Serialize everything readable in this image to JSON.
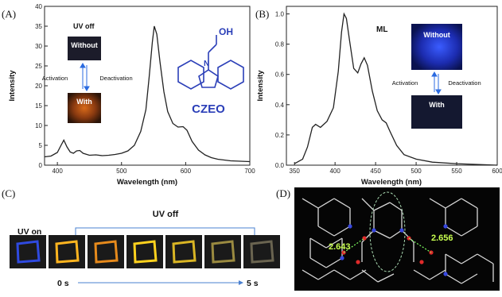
{
  "panels": {
    "A": {
      "label": "(A)"
    },
    "B": {
      "label": "(B)"
    },
    "C": {
      "label": "(C)"
    },
    "D": {
      "label": "(D)"
    }
  },
  "panelA": {
    "inset_title": "UV off",
    "without": "Without",
    "with": "With",
    "activation": "Activation",
    "deactivation": "Deactivation",
    "molecule_oh": "OH",
    "molecule_n": "N",
    "molecule_name": "CZEO",
    "molecule_color": "#2b3fb8"
  },
  "panelB": {
    "ml_label": "ML",
    "without": "Without",
    "with": "With",
    "activation": "Activation",
    "deactivation": "Deactivation"
  },
  "panelC": {
    "uv_on": "UV on",
    "uv_off": "UV off",
    "t_start": "0 s",
    "t_end": "5 s",
    "frame_colors": [
      "#2f4ae0",
      "#ffb520",
      "#e68a1c",
      "#ffd21e",
      "#d9b524",
      "#9a8a40",
      "#6a6450"
    ]
  },
  "panelD": {
    "d1": "2.643",
    "d2": "2.656"
  },
  "chart_data": [
    {
      "type": "line",
      "panel": "A",
      "xlabel": "Wavelength (nm)",
      "ylabel": "Intensity",
      "xlim": [
        380,
        700
      ],
      "ylim": [
        0,
        40
      ],
      "xticks": [
        400,
        500,
        600,
        700
      ],
      "yticks": [
        0,
        5,
        10,
        15,
        20,
        25,
        30,
        35,
        40
      ],
      "series": [
        {
          "points": [
            [
              380,
              2.1
            ],
            [
              390,
              2.3
            ],
            [
              400,
              3.2
            ],
            [
              405,
              4.8
            ],
            [
              410,
              6.3
            ],
            [
              415,
              4.6
            ],
            [
              420,
              3.3
            ],
            [
              425,
              3.0
            ],
            [
              430,
              3.6
            ],
            [
              435,
              3.7
            ],
            [
              440,
              3.0
            ],
            [
              450,
              2.5
            ],
            [
              460,
              2.6
            ],
            [
              470,
              2.4
            ],
            [
              480,
              2.5
            ],
            [
              490,
              2.7
            ],
            [
              500,
              3.0
            ],
            [
              510,
              3.6
            ],
            [
              520,
              5.0
            ],
            [
              530,
              8.5
            ],
            [
              538,
              14.0
            ],
            [
              543,
              22.0
            ],
            [
              548,
              31.0
            ],
            [
              551,
              35.0
            ],
            [
              555,
              33.0
            ],
            [
              560,
              26.0
            ],
            [
              566,
              18.5
            ],
            [
              572,
              13.5
            ],
            [
              580,
              10.5
            ],
            [
              588,
              9.6
            ],
            [
              596,
              9.7
            ],
            [
              602,
              8.8
            ],
            [
              610,
              6.0
            ],
            [
              620,
              3.8
            ],
            [
              630,
              2.6
            ],
            [
              640,
              1.9
            ],
            [
              650,
              1.5
            ],
            [
              670,
              1.1
            ],
            [
              700,
              0.9
            ]
          ]
        }
      ]
    },
    {
      "type": "line",
      "panel": "B",
      "xlabel": "Wavelength (nm)",
      "ylabel": "Intensity",
      "xlim": [
        340,
        600
      ],
      "ylim": [
        0,
        1.05
      ],
      "xticks": [
        350,
        400,
        450,
        500,
        550,
        600
      ],
      "yticks": [
        0.0,
        0.2,
        0.4,
        0.6,
        0.8,
        1.0
      ],
      "series": [
        {
          "points": [
            [
              350,
              0.01
            ],
            [
              360,
              0.04
            ],
            [
              366,
              0.12
            ],
            [
              372,
              0.25
            ],
            [
              376,
              0.27
            ],
            [
              382,
              0.25
            ],
            [
              390,
              0.29
            ],
            [
              398,
              0.38
            ],
            [
              404,
              0.62
            ],
            [
              408,
              0.88
            ],
            [
              411,
              1.0
            ],
            [
              414,
              0.97
            ],
            [
              418,
              0.82
            ],
            [
              423,
              0.64
            ],
            [
              428,
              0.61
            ],
            [
              432,
              0.67
            ],
            [
              436,
              0.71
            ],
            [
              440,
              0.66
            ],
            [
              446,
              0.49
            ],
            [
              452,
              0.36
            ],
            [
              458,
              0.3
            ],
            [
              463,
              0.28
            ],
            [
              468,
              0.22
            ],
            [
              476,
              0.13
            ],
            [
              485,
              0.07
            ],
            [
              500,
              0.04
            ],
            [
              520,
              0.02
            ],
            [
              550,
              0.01
            ],
            [
              600,
              0.0
            ]
          ]
        }
      ]
    }
  ]
}
